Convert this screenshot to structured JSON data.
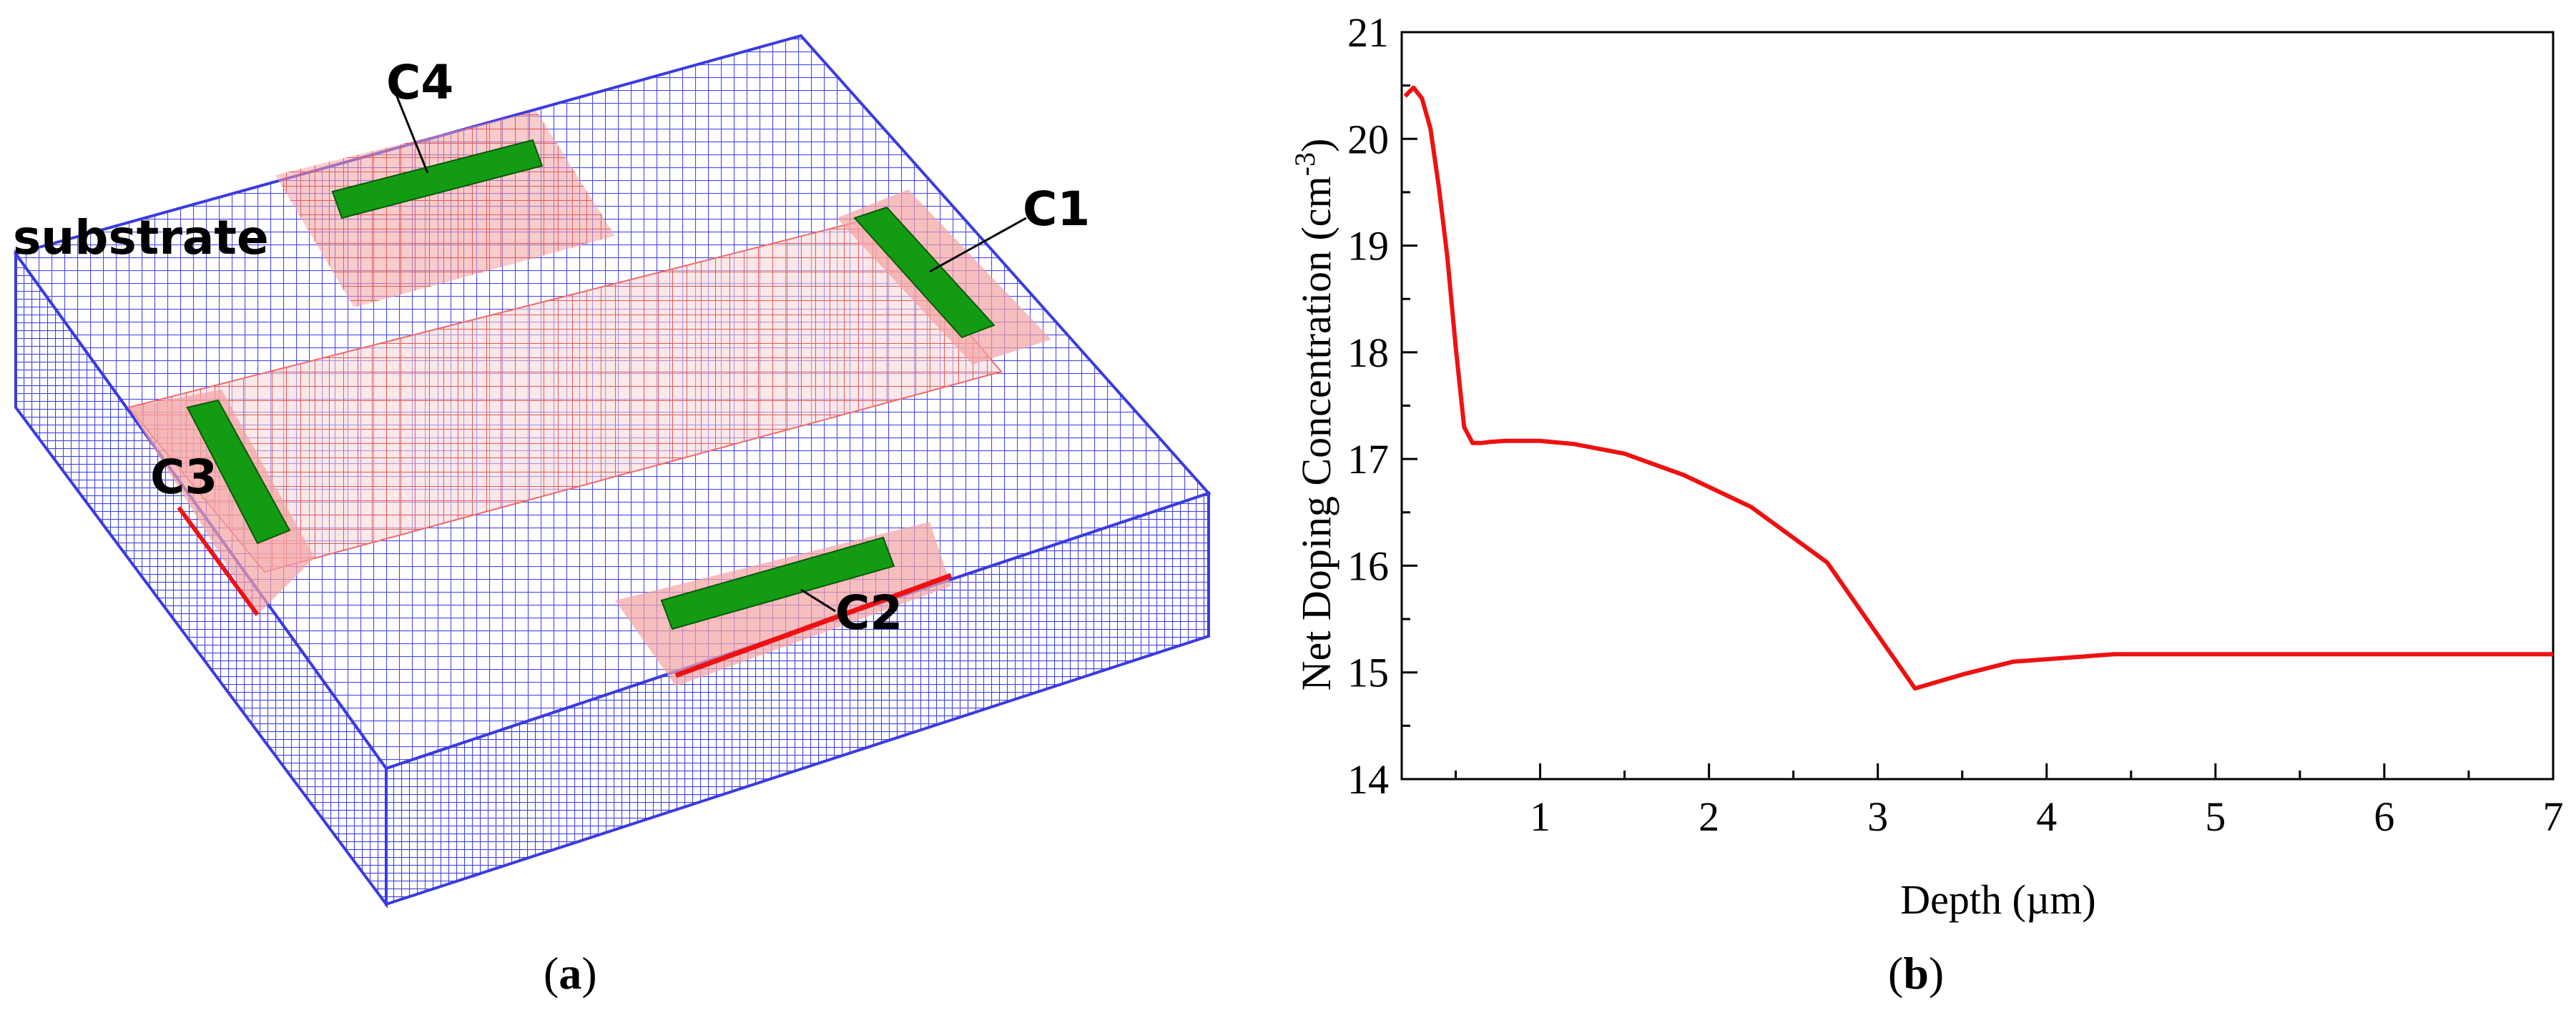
{
  "panel_a": {
    "caption_letter": "a",
    "labels": {
      "substrate": "substrate",
      "c1": "C1",
      "c2": "C2",
      "c3": "C3",
      "c4": "C4"
    },
    "colors": {
      "mesh_substrate": "#4a4aee",
      "mesh_doped": "#ee6a6a",
      "doped_fill": "#f4a3a3",
      "contact": "#139b13"
    }
  },
  "panel_b": {
    "caption_letter": "b"
  },
  "chart_data": {
    "type": "line",
    "title": "",
    "xlabel": "Depth (µm)",
    "ylabel_main": "Net Doping Concentration (cm",
    "ylabel_sup": "-3",
    "ylabel_end": ")",
    "xlim": [
      0.18,
      7
    ],
    "ylim": [
      14,
      21
    ],
    "xticks": [
      1,
      2,
      3,
      4,
      5,
      6,
      7
    ],
    "yticks": [
      14,
      15,
      16,
      17,
      18,
      19,
      20,
      21
    ],
    "grid": false,
    "color": "#ee1111",
    "series": [
      {
        "name": "Net Doping Concentration",
        "x": [
          0.2,
          0.25,
          0.3,
          0.35,
          0.4,
          0.45,
          0.5,
          0.55,
          0.6,
          0.65,
          0.7,
          0.8,
          1.0,
          1.2,
          1.5,
          1.85,
          2.25,
          2.7,
          3.22,
          3.5,
          3.8,
          4.4,
          5.0,
          6.0,
          7.0
        ],
        "y": [
          20.4,
          20.48,
          20.38,
          20.1,
          19.55,
          18.9,
          18.05,
          17.3,
          17.15,
          17.15,
          17.16,
          17.17,
          17.17,
          17.14,
          17.05,
          16.85,
          16.55,
          16.03,
          14.85,
          14.98,
          15.1,
          15.17,
          15.17,
          15.17,
          15.17
        ]
      }
    ]
  }
}
